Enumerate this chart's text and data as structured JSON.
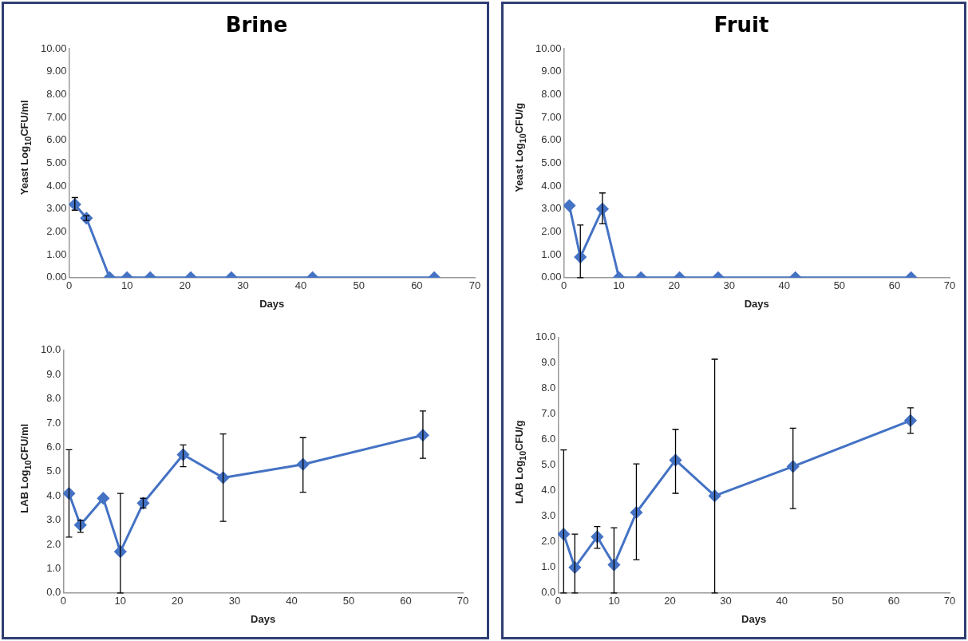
{
  "chart_data": [
    {
      "type": "line",
      "title": "Brine",
      "xlabel": "Days",
      "ylabel": "Yeast Log$_{10}$CFU/ml",
      "x": [
        1,
        3,
        7,
        10,
        14,
        21,
        28,
        42,
        63
      ],
      "xlim": [
        0,
        70
      ],
      "xticks": [
        0,
        10,
        20,
        30,
        40,
        50,
        60,
        70
      ],
      "ylim": [
        0,
        10
      ],
      "yticks": [
        {
          "value": 0,
          "label": "0.00"
        },
        {
          "value": 1,
          "label": "1.00"
        },
        {
          "value": 2,
          "label": "2.00"
        },
        {
          "value": 3,
          "label": "3.00"
        },
        {
          "value": 4,
          "label": "4.00"
        },
        {
          "value": 5,
          "label": "5.00"
        },
        {
          "value": 6,
          "label": "6.00"
        },
        {
          "value": 7,
          "label": "7.00"
        },
        {
          "value": 8,
          "label": "8.00"
        },
        {
          "value": 9,
          "label": "9.00"
        },
        {
          "value": 10,
          "label": "10.00"
        }
      ],
      "grid": false,
      "legend": false,
      "marker": "diamond",
      "line_style": "solid",
      "series": [
        {
          "color": "#4472c4",
          "values": [
            3.2,
            2.6,
            0,
            0,
            0,
            0,
            0,
            0,
            0
          ],
          "errors": [
            [
              2.95,
              3.5
            ],
            [
              2.5,
              2.7
            ],
            null,
            null,
            null,
            null,
            null,
            null,
            null
          ]
        }
      ]
    },
    {
      "type": "line",
      "title": "Fruit",
      "xlabel": "Days",
      "ylabel": "Yeast Log$_{10}$CFU/g",
      "x": [
        1,
        3,
        7,
        10,
        14,
        21,
        28,
        42,
        63
      ],
      "xlim": [
        0,
        70
      ],
      "xticks": [
        0,
        10,
        20,
        30,
        40,
        50,
        60,
        70
      ],
      "ylim": [
        0,
        10
      ],
      "yticks": [
        {
          "value": 0,
          "label": "0.00"
        },
        {
          "value": 1,
          "label": "1.00"
        },
        {
          "value": 2,
          "label": "2.00"
        },
        {
          "value": 3,
          "label": "3.00"
        },
        {
          "value": 4,
          "label": "4.00"
        },
        {
          "value": 5,
          "label": "5.00"
        },
        {
          "value": 6,
          "label": "6.00"
        },
        {
          "value": 7,
          "label": "7.00"
        },
        {
          "value": 8,
          "label": "8.00"
        },
        {
          "value": 9,
          "label": "9.00"
        },
        {
          "value": 10,
          "label": "10.00"
        }
      ],
      "grid": false,
      "legend": false,
      "marker": "diamond",
      "line_style": "solid",
      "series": [
        {
          "color": "#4472c4",
          "values": [
            3.15,
            0.9,
            3.0,
            0,
            0,
            0,
            0,
            0,
            0
          ],
          "errors": [
            null,
            [
              0,
              2.3
            ],
            [
              2.35,
              3.7
            ],
            null,
            null,
            null,
            null,
            null,
            null
          ]
        }
      ]
    },
    {
      "type": "line",
      "xlabel": "Days",
      "ylabel": "LAB Log$_{10}$CFU/ml",
      "x": [
        1,
        3,
        7,
        10,
        14,
        21,
        28,
        42,
        63
      ],
      "xlim": [
        0,
        70
      ],
      "xticks": [
        0,
        10,
        20,
        30,
        40,
        50,
        60,
        70
      ],
      "ylim": [
        0,
        10
      ],
      "yticks": [
        {
          "value": 0,
          "label": "0.0"
        },
        {
          "value": 1,
          "label": "1.0"
        },
        {
          "value": 2,
          "label": "2.0"
        },
        {
          "value": 3,
          "label": "3.0"
        },
        {
          "value": 4,
          "label": "4.0"
        },
        {
          "value": 5,
          "label": "5.0"
        },
        {
          "value": 6,
          "label": "6.0"
        },
        {
          "value": 7,
          "label": "7.0"
        },
        {
          "value": 8,
          "label": "8.0"
        },
        {
          "value": 9,
          "label": "9.0"
        },
        {
          "value": 10,
          "label": "10.0"
        }
      ],
      "grid": false,
      "legend": false,
      "marker": "diamond",
      "line_style": "solid",
      "series": [
        {
          "color": "#4472c4",
          "values": [
            4.1,
            2.8,
            3.9,
            1.7,
            3.7,
            5.7,
            4.75,
            5.3,
            6.5
          ],
          "errors": [
            [
              2.3,
              5.9
            ],
            [
              2.5,
              3.0
            ],
            null,
            [
              0,
              4.1
            ],
            [
              3.5,
              3.9
            ],
            [
              5.2,
              6.1
            ],
            [
              2.95,
              6.55
            ],
            [
              4.15,
              6.4
            ],
            [
              5.55,
              7.5
            ]
          ]
        }
      ]
    },
    {
      "type": "line",
      "xlabel": "Days",
      "ylabel": "LAB Log$_{10}$CFU/g",
      "x": [
        1,
        3,
        7,
        10,
        14,
        21,
        28,
        42,
        63
      ],
      "xlim": [
        0,
        70
      ],
      "xticks": [
        0,
        10,
        20,
        30,
        40,
        50,
        60,
        70
      ],
      "ylim": [
        0,
        10
      ],
      "yticks": [
        {
          "value": 0,
          "label": "0.0"
        },
        {
          "value": 1,
          "label": "1.0"
        },
        {
          "value": 2,
          "label": "2.0"
        },
        {
          "value": 3,
          "label": "3.0"
        },
        {
          "value": 4,
          "label": "4.0"
        },
        {
          "value": 5,
          "label": "5.0"
        },
        {
          "value": 6,
          "label": "6.0"
        },
        {
          "value": 7,
          "label": "7.0"
        },
        {
          "value": 8,
          "label": "8.0"
        },
        {
          "value": 9,
          "label": "9.0"
        },
        {
          "value": 10,
          "label": "10.0"
        }
      ],
      "grid": false,
      "legend": false,
      "marker": "diamond",
      "line_style": "solid",
      "series": [
        {
          "color": "#4472c4",
          "values": [
            2.3,
            1.0,
            2.2,
            1.1,
            3.15,
            5.2,
            3.8,
            4.95,
            6.75
          ],
          "errors": [
            [
              0,
              5.6
            ],
            [
              0,
              2.3
            ],
            [
              1.75,
              2.6
            ],
            [
              0,
              2.55
            ],
            [
              1.3,
              5.05
            ],
            [
              3.9,
              6.4
            ],
            [
              0,
              9.15
            ],
            [
              3.3,
              6.45
            ],
            [
              6.25,
              7.25
            ]
          ]
        }
      ]
    }
  ]
}
